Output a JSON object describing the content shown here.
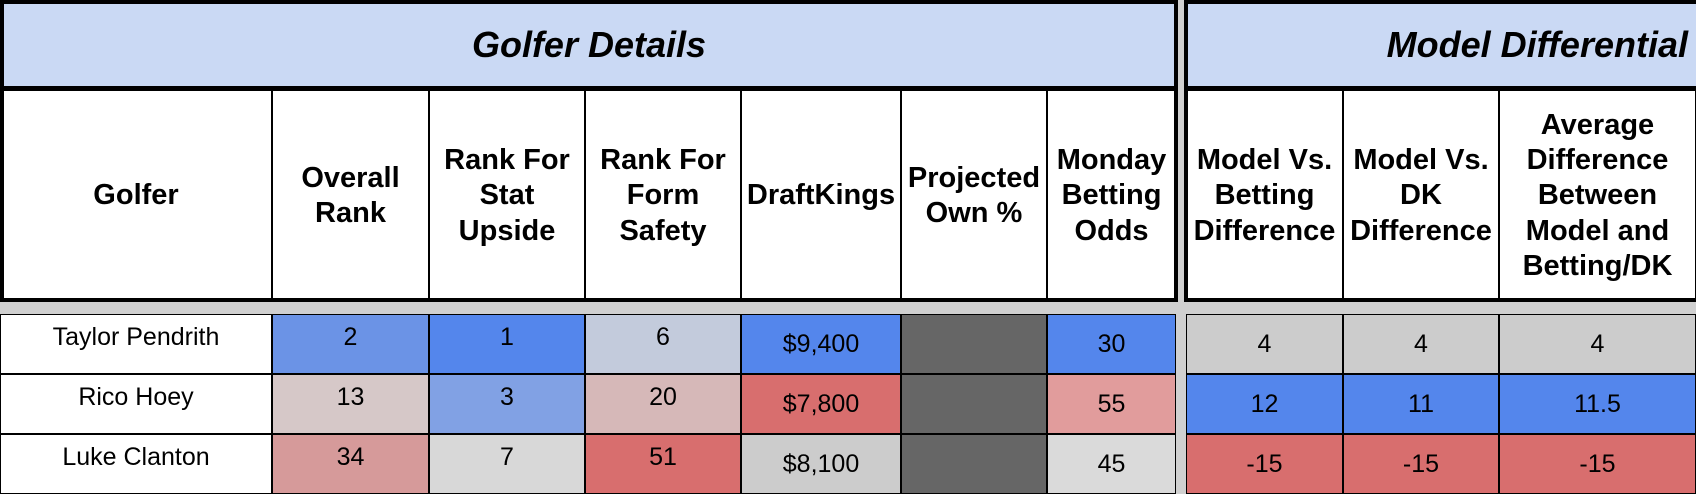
{
  "section_titles": {
    "left": "Golfer Details",
    "right": "Model Differential"
  },
  "headers": {
    "golfer": "Golfer",
    "overall_rank": "Overall Rank",
    "rank_stat_upside": "Rank For Stat Upside",
    "rank_form_safety": "Rank For Form Safety",
    "draftkings": "DraftKings",
    "projected_own": "Projected Own %",
    "monday_odds": "Monday Betting Odds",
    "model_vs_betting": "Model Vs. Betting Difference",
    "model_vs_dk": "Model Vs. DK Difference",
    "avg_difference": "Average Difference Between Model and Betting/DK"
  },
  "rows": [
    {
      "golfer": "Taylor Pendrith",
      "overall_rank": "2",
      "overall_rank_color": "#6b93e6",
      "rank_stat_upside": "1",
      "rank_stat_upside_color": "#5486ec",
      "rank_form_safety": "6",
      "rank_form_safety_color": "#c3cbdc",
      "draftkings": "$9,400",
      "draftkings_color": "#5486ec",
      "projected_own": "",
      "projected_own_color": "#666666",
      "monday_odds": "30",
      "monday_odds_color": "#5486ec",
      "model_vs_betting": "4",
      "model_vs_betting_color": "#cccccc",
      "model_vs_dk": "4",
      "model_vs_dk_color": "#cccccc",
      "avg_difference": "4",
      "avg_difference_color": "#cccccc"
    },
    {
      "golfer": "Rico Hoey",
      "overall_rank": "13",
      "overall_rank_color": "#d6c8c8",
      "rank_stat_upside": "3",
      "rank_stat_upside_color": "#81a1e4",
      "rank_form_safety": "20",
      "rank_form_safety_color": "#d6b8b8",
      "draftkings": "$7,800",
      "draftkings_color": "#d86e6e",
      "projected_own": "",
      "projected_own_color": "#666666",
      "monday_odds": "55",
      "monday_odds_color": "#e19c9c",
      "model_vs_betting": "12",
      "model_vs_betting_color": "#5486ec",
      "model_vs_dk": "11",
      "model_vs_dk_color": "#5486ec",
      "avg_difference": "11.5",
      "avg_difference_color": "#5486ec"
    },
    {
      "golfer": "Luke Clanton",
      "overall_rank": "34",
      "overall_rank_color": "#d69a9a",
      "rank_stat_upside": "7",
      "rank_stat_upside_color": "#d8d8d8",
      "rank_form_safety": "51",
      "rank_form_safety_color": "#d86e6e",
      "draftkings": "$8,100",
      "draftkings_color": "#cccccc",
      "projected_own": "",
      "projected_own_color": "#666666",
      "monday_odds": "45",
      "monday_odds_color": "#dadada",
      "model_vs_betting": "-15",
      "model_vs_betting_color": "#d86e6e",
      "model_vs_dk": "-15",
      "model_vs_dk_color": "#d86e6e",
      "avg_difference": "-15",
      "avg_difference_color": "#d86e6e"
    }
  ]
}
